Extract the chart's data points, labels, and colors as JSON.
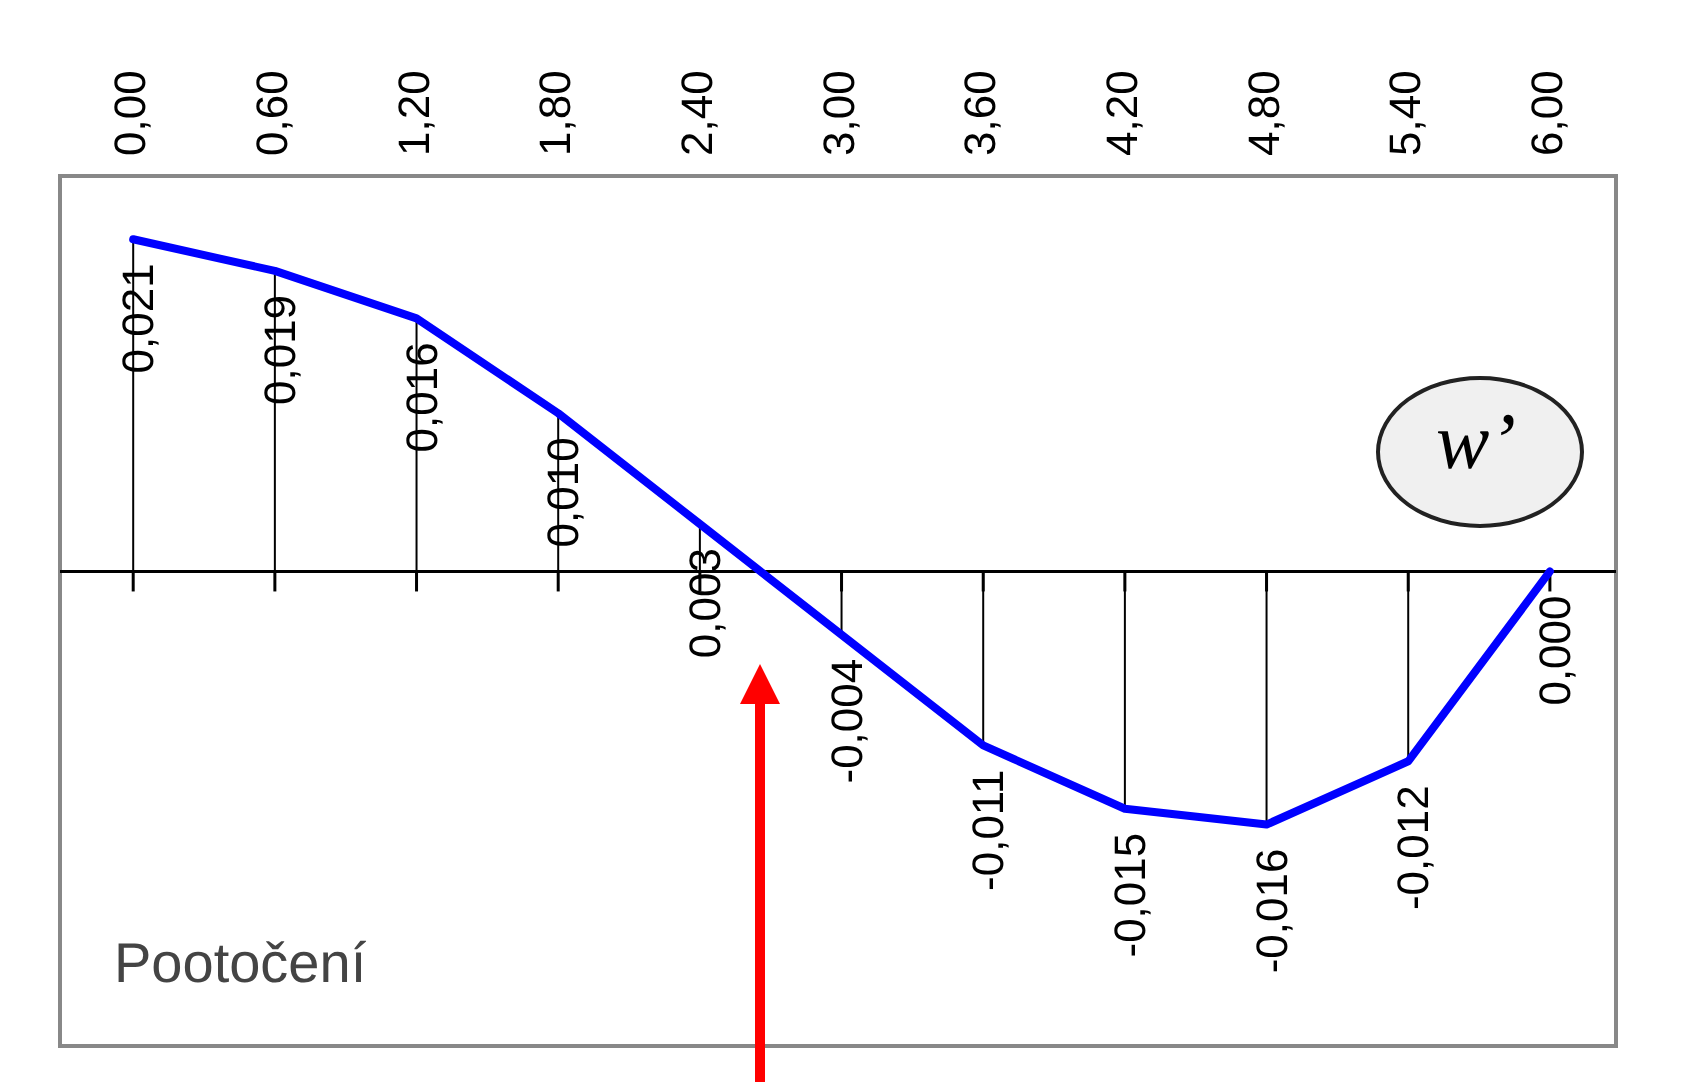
{
  "chart_data": {
    "type": "line",
    "x": [
      0,
      0.6,
      1.2,
      1.8,
      2.4,
      3.0,
      3.6,
      4.2,
      4.8,
      5.4,
      6.0
    ],
    "series": [
      {
        "color": "#0000ff",
        "values": [
          0.021,
          0.019,
          0.016,
          0.01,
          0.003,
          -0.004,
          -0.011,
          -0.015,
          -0.016,
          -0.012,
          0.0
        ],
        "value_labels": [
          "0,021",
          "0,019",
          "0,016",
          "0,010",
          "0,003",
          "-0,004",
          "-0,011",
          "-0,015",
          "-0,016",
          "-0,012",
          "0,000"
        ]
      }
    ],
    "xlim": [
      -0.31,
      6.28
    ],
    "xticks": [
      {
        "value": 0,
        "label": "0,00"
      },
      {
        "value": 0.6,
        "label": "0,60"
      },
      {
        "value": 1.2,
        "label": "1,20"
      },
      {
        "value": 1.8,
        "label": "1,80"
      },
      {
        "value": 2.4,
        "label": "2,40"
      },
      {
        "value": 3.0,
        "label": "3,00"
      },
      {
        "value": 3.6,
        "label": "3,60"
      },
      {
        "value": 4.2,
        "label": "4,20"
      },
      {
        "value": 4.8,
        "label": "4,80"
      },
      {
        "value": 5.4,
        "label": "5,40"
      },
      {
        "value": 6.0,
        "label": "6,00"
      }
    ],
    "ylim": [
      -0.03,
      0.025
    ],
    "tick_labels": "x",
    "grid": false,
    "legend": false,
    "marker": "none",
    "line_style": "solid",
    "annotations": [
      "Pootočení",
      "w’"
    ]
  }
}
